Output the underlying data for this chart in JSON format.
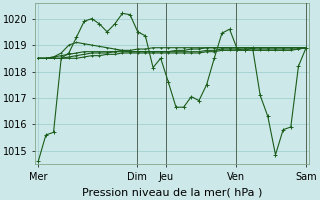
{
  "bg_color": "#cce8e8",
  "grid_color": "#99cccc",
  "line_color": "#1a5c1a",
  "marker": "+",
  "markersize": 3,
  "linewidth": 0.8,
  "xlabel": "Pression niveau de la mer( hPa )",
  "xlabel_fontsize": 8,
  "ytick_fontsize": 7,
  "xtick_fontsize": 7,
  "yticks": [
    1015,
    1016,
    1017,
    1018,
    1019,
    1020
  ],
  "ylim": [
    1014.5,
    1020.6
  ],
  "xtick_labels": [
    "Mer",
    "Dim",
    "Jeu",
    "Ven",
    "Sam"
  ],
  "xtick_positions": [
    0,
    31,
    40,
    62,
    84
  ],
  "xlim": [
    -1,
    85
  ],
  "series": [
    [
      1014.6,
      1015.6,
      1015.7,
      1018.5,
      1018.7,
      1019.3,
      1019.9,
      1020.0,
      1019.8,
      1019.5,
      1019.8,
      1020.2,
      1020.15,
      1019.5,
      1019.35,
      1018.15,
      1018.5,
      1017.6,
      1016.65,
      1016.65,
      1017.05,
      1016.9,
      1017.5,
      1018.5,
      1019.45,
      1019.6,
      1018.85,
      1018.8,
      1018.9,
      1017.1,
      1016.3,
      1014.85,
      1015.8,
      1015.9,
      1018.2,
      1018.9
    ],
    [
      1018.5,
      1018.5,
      1018.55,
      1018.6,
      1018.65,
      1018.7,
      1018.75,
      1018.75,
      1018.75,
      1018.75,
      1018.75,
      1018.75,
      1018.75,
      1018.75,
      1018.75,
      1018.75,
      1018.75,
      1018.75,
      1018.75,
      1018.75,
      1018.75,
      1018.75,
      1018.8,
      1018.8,
      1018.85,
      1018.85,
      1018.85,
      1018.85,
      1018.85,
      1018.85,
      1018.85,
      1018.85,
      1018.85,
      1018.85,
      1018.85,
      1018.9
    ],
    [
      1018.5,
      1018.5,
      1018.5,
      1018.5,
      1018.55,
      1018.6,
      1018.65,
      1018.7,
      1018.7,
      1018.7,
      1018.75,
      1018.8,
      1018.8,
      1018.85,
      1018.85,
      1018.9,
      1018.9,
      1018.9,
      1018.9,
      1018.9,
      1018.9,
      1018.9,
      1018.9,
      1018.9,
      1018.9,
      1018.9,
      1018.9,
      1018.9,
      1018.9,
      1018.9,
      1018.9,
      1018.9,
      1018.9,
      1018.9,
      1018.9,
      1018.9
    ],
    [
      1018.5,
      1018.5,
      1018.5,
      1018.5,
      1018.5,
      1018.5,
      1018.55,
      1018.6,
      1018.6,
      1018.65,
      1018.65,
      1018.7,
      1018.7,
      1018.7,
      1018.7,
      1018.7,
      1018.7,
      1018.7,
      1018.7,
      1018.7,
      1018.7,
      1018.7,
      1018.75,
      1018.75,
      1018.8,
      1018.8,
      1018.8,
      1018.8,
      1018.8,
      1018.8,
      1018.8,
      1018.8,
      1018.8,
      1018.8,
      1018.85,
      1018.9
    ],
    [
      1018.5,
      1018.5,
      1018.55,
      1018.7,
      1019.0,
      1019.1,
      1019.05,
      1019.0,
      1018.95,
      1018.9,
      1018.85,
      1018.8,
      1018.75,
      1018.75,
      1018.75,
      1018.75,
      1018.75,
      1018.75,
      1018.8,
      1018.8,
      1018.85,
      1018.85,
      1018.9,
      1018.9,
      1018.9,
      1018.9,
      1018.9,
      1018.9,
      1018.9,
      1018.9,
      1018.9,
      1018.9,
      1018.9,
      1018.9,
      1018.9,
      1018.9
    ]
  ],
  "vline_positions": [
    31,
    40,
    62,
    84
  ],
  "vline_color": "#556655",
  "vline_lw": 0.7
}
